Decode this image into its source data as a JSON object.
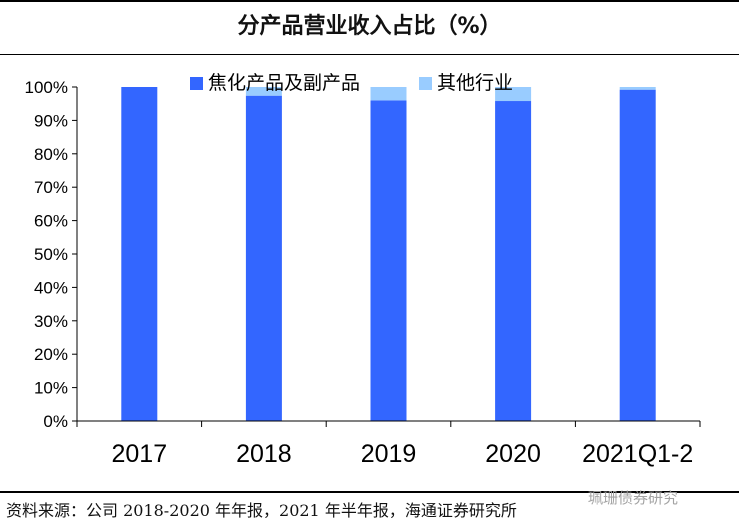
{
  "chart_data": {
    "type": "bar",
    "stacked": true,
    "title": "分产品营业收入占比（%）",
    "categories": [
      "2017",
      "2018",
      "2019",
      "2020",
      "2021Q1-2"
    ],
    "series": [
      {
        "name": "焦化产品及副产品",
        "color": "#3366ff",
        "values": [
          100,
          97.4,
          96.0,
          95.8,
          99.2
        ]
      },
      {
        "name": "其他行业",
        "color": "#99ccff",
        "values": [
          0,
          2.6,
          4.0,
          4.2,
          0.8
        ]
      }
    ],
    "ylim": [
      0,
      100
    ],
    "yticks": [
      "0%",
      "10%",
      "20%",
      "30%",
      "40%",
      "50%",
      "60%",
      "70%",
      "80%",
      "90%",
      "100%"
    ],
    "xlabel": "",
    "ylabel": "",
    "legend_position": "top",
    "grid": false
  },
  "footer": {
    "source": "资料来源：公司 2018-2020 年年报，2021 年半年报，海通证券研究所",
    "watermark": "珮珊债券研究"
  }
}
